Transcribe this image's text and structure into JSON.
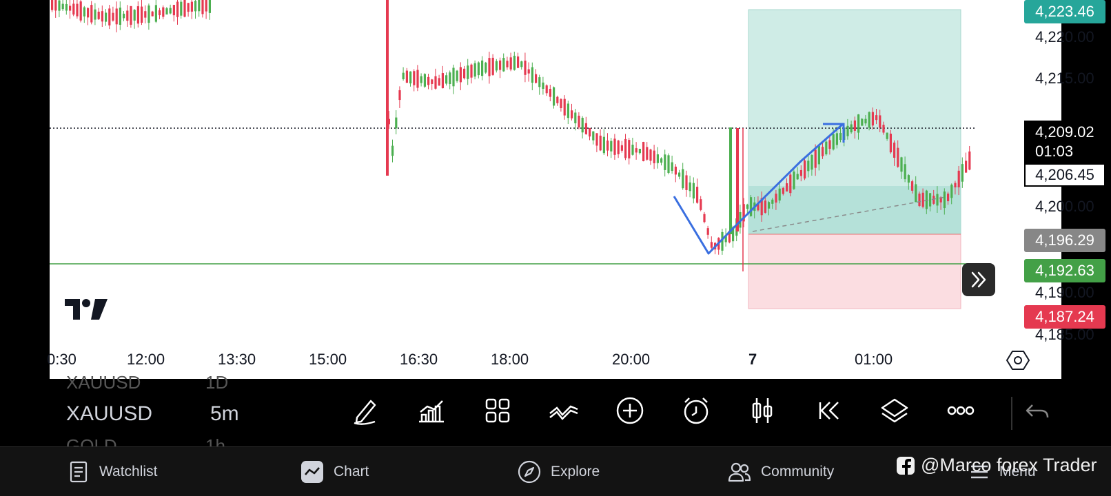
{
  "price_axis": {
    "labels": [
      "4,220.00",
      "4,215.00",
      "4,200.00",
      "4,190.00",
      "4,185.00"
    ],
    "tags": {
      "target": "4,223.46",
      "current": "4,209.02",
      "countdown": "01:03",
      "last": "4,206.45",
      "entry": "4,196.29",
      "line": "4,192.63",
      "stop": "4,187.24"
    }
  },
  "time_axis": [
    "0:30",
    "12:00",
    "13:30",
    "15:00",
    "16:30",
    "18:00",
    "20:00",
    "7",
    "01:00"
  ],
  "toolbar": {
    "symbol_prev": "XAUUSD",
    "interval_prev": "1D",
    "symbol": "XAUUSD",
    "interval": "5m",
    "symbol_next": "GOLD",
    "interval_next": "1h",
    "icons": [
      "pencil-draw-icon",
      "indicators-icon",
      "layouts-grid-icon",
      "drawing-tools-icon",
      "add-icon",
      "alert-clock-icon",
      "candles-icon",
      "replay-icon",
      "layers-icon",
      "more-icon",
      "undo-icon"
    ]
  },
  "nav": {
    "watchlist": "Watchlist",
    "chart": "Chart",
    "explore": "Explore",
    "community": "Community",
    "menu": "Menu"
  },
  "watermark": "@Marco forex Trader",
  "colors": {
    "up": "#26a69a",
    "up_candle": "#4caf50",
    "down": "#e53950",
    "profit_zone": "#cfece6",
    "loss_zone": "#fbdde1",
    "drawing": "#3a6fe0",
    "hline": "#43a047"
  }
}
